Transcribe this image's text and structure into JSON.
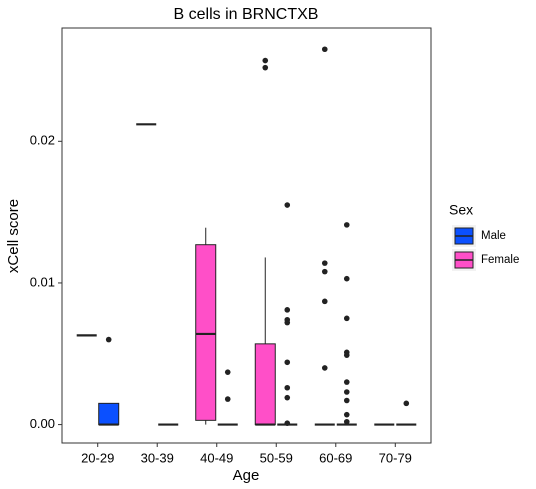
{
  "chart_data": {
    "type": "box",
    "title": "B cells in BRNCTXB",
    "x_label": "Age",
    "y_label": "xCell score",
    "legend_title": "Sex",
    "categories": [
      "20-29",
      "30-39",
      "40-49",
      "50-59",
      "60-69",
      "70-79"
    ],
    "ylim": [
      -0.0013,
      0.028
    ],
    "yticks": [
      {
        "value": 0,
        "label": "0.00"
      },
      0.01,
      0.02
    ],
    "grid": false,
    "series": [
      {
        "name": "Male",
        "color": "#0b50ff",
        "boxes": [
          {
            "min": 0,
            "q1": 0,
            "median": 0,
            "q3": 0.0015,
            "max": 0.0015,
            "outliers": [
              0.006
            ]
          },
          {
            "min": 0,
            "q1": 0,
            "median": 0,
            "q3": 0,
            "max": 0,
            "outliers": []
          },
          {
            "min": 0,
            "q1": 0,
            "median": 0,
            "q3": 0,
            "max": 0,
            "outliers": [
              0.0037,
              0.0018
            ]
          },
          {
            "min": 0,
            "q1": 0,
            "median": 0,
            "q3": 0,
            "max": 0,
            "outliers": [
              0.0155,
              0.0081,
              0.0074,
              0.0072,
              0.0044,
              0.0026,
              0.0019,
              0.0001
            ]
          },
          {
            "min": 0,
            "q1": 0,
            "median": 0,
            "q3": 0,
            "max": 0,
            "outliers": [
              0.0141,
              0.0103,
              0.0075,
              0.0051,
              0.0049,
              0.003,
              0.0023,
              0.0017,
              0.0007,
              0.0002
            ]
          },
          {
            "min": 0,
            "q1": 0,
            "median": 0,
            "q3": 0,
            "max": 0,
            "outliers": [
              0.0015
            ]
          }
        ]
      },
      {
        "name": "Female",
        "color": "#ff4fc8",
        "boxes": [
          {
            "min": 0.0063,
            "q1": 0.0063,
            "median": 0.0063,
            "q3": 0.0063,
            "max": 0.0063,
            "outliers": []
          },
          {
            "min": 0.0212,
            "q1": 0.0212,
            "median": 0.0212,
            "q3": 0.0212,
            "max": 0.0212,
            "outliers": []
          },
          {
            "min": 0,
            "q1": 0.0003,
            "median": 0.0064,
            "q3": 0.0127,
            "max": 0.0139,
            "outliers": []
          },
          {
            "min": 0,
            "q1": 0,
            "median": 0,
            "q3": 0.0057,
            "max": 0.0118,
            "outliers": [
              0.0257,
              0.0252
            ]
          },
          {
            "min": 0,
            "q1": 0,
            "median": 0,
            "q3": 0,
            "max": 0,
            "outliers": [
              0.0265,
              0.0114,
              0.0108,
              0.0087,
              0.004
            ]
          },
          {
            "min": 0,
            "q1": 0,
            "median": 0,
            "q3": 0,
            "max": 0,
            "outliers": []
          }
        ]
      }
    ]
  }
}
